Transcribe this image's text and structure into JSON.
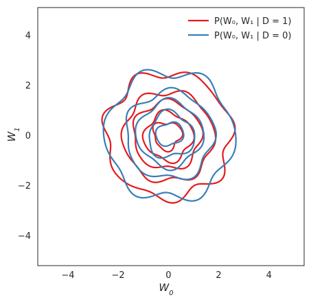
{
  "chart_data": {
    "type": "contour",
    "title": "",
    "xlabel": "W",
    "xlabel_sub": "0",
    "ylabel": "W",
    "ylabel_sub": "1",
    "xlim": [
      -5.2,
      5.4
    ],
    "ylim": [
      -5.2,
      5.1
    ],
    "xticks": [
      -4,
      -2,
      0,
      2,
      4
    ],
    "yticks": [
      -4,
      -2,
      0,
      2,
      4
    ],
    "grid": false,
    "legend_position": "top-right",
    "series": [
      {
        "name": "P(W0, W1 | D = 1)",
        "color": "#e41a1c",
        "levels": [
          {
            "r": 2.5,
            "cx": 0.0,
            "cy": 0.0,
            "amp": 0.07,
            "freq": 7,
            "phase": 0.0
          },
          {
            "r": 1.8,
            "cx": 0.0,
            "cy": -0.05,
            "amp": 0.06,
            "freq": 6,
            "phase": 1.2
          },
          {
            "r": 1.35,
            "cx": -0.05,
            "cy": 0.0,
            "amp": 0.07,
            "freq": 5,
            "phase": 0.5
          },
          {
            "r": 0.95,
            "cx": 0.0,
            "cy": -0.05,
            "amp": 0.1,
            "freq": 4,
            "phase": 0.9
          },
          {
            "r": 0.55,
            "cx": -0.05,
            "cy": 0.0,
            "amp": 0.16,
            "freq": 3,
            "phase": 0.3
          }
        ]
      },
      {
        "name": "P(W0, W1 | D = 0)",
        "color": "#377eb8",
        "levels": [
          {
            "r": 2.55,
            "cx": 0.05,
            "cy": 0.0,
            "amp": 0.07,
            "freq": 6,
            "phase": 2.0
          },
          {
            "r": 1.75,
            "cx": 0.05,
            "cy": 0.0,
            "amp": 0.07,
            "freq": 5,
            "phase": 0.7
          },
          {
            "r": 1.3,
            "cx": 0.05,
            "cy": 0.05,
            "amp": 0.08,
            "freq": 4,
            "phase": 1.6
          },
          {
            "r": 0.9,
            "cx": 0.1,
            "cy": 0.0,
            "amp": 0.12,
            "freq": 3,
            "phase": 2.4
          },
          {
            "r": 0.5,
            "cx": 0.05,
            "cy": 0.05,
            "amp": 0.14,
            "freq": 2,
            "phase": 1.0
          }
        ]
      }
    ],
    "legend": [
      {
        "label": "P(W₀, W₁ | D = 1)",
        "color": "#e41a1c"
      },
      {
        "label": "P(W₀, W₁ | D = 0)",
        "color": "#377eb8"
      }
    ]
  }
}
